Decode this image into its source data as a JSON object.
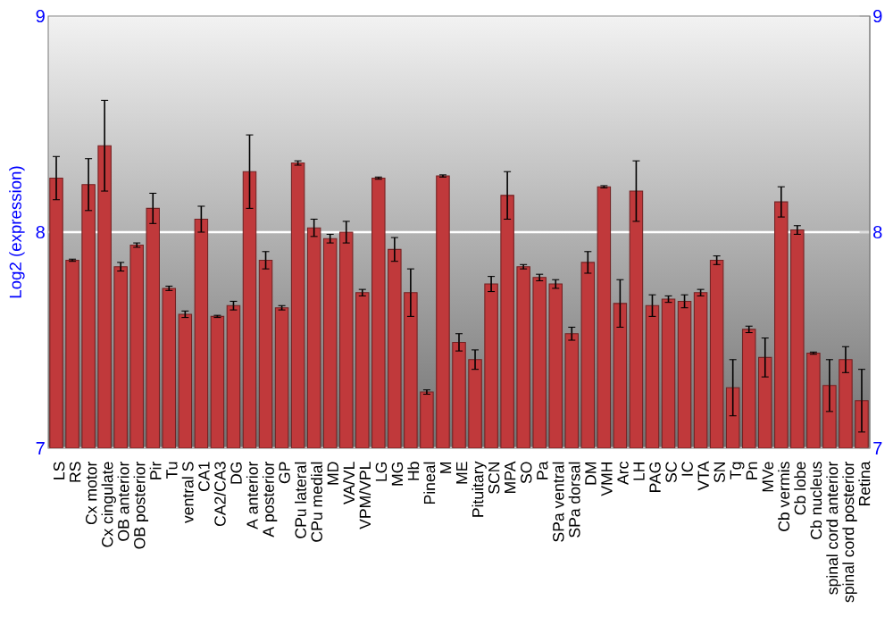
{
  "chart_data": {
    "type": "bar",
    "ylabel": "Log2 (expression)",
    "categories": [
      "LS",
      "RS",
      "Cx motor",
      "Cx cingulate",
      "OB anterior",
      "OB posterior",
      "Pir",
      "Tu",
      "ventral S",
      "CA1",
      "CA2/CA3",
      "DG",
      "A anterior",
      "A posterior",
      "GP",
      "CPu lateral",
      "CPu medial",
      "MD",
      "VA/VL",
      "VPM/VPL",
      "LG",
      "MG",
      "Hb",
      "Pineal",
      "M",
      "ME",
      "Pituitary",
      "SCN",
      "MPA",
      "SO",
      "Pa",
      "SPa ventral",
      "SPa dorsal",
      "DM",
      "VMH",
      "Arc",
      "LH",
      "PAG",
      "SC",
      "IC",
      "VTA",
      "SN",
      "Tg",
      "Pn",
      "MVe",
      "Cb vermis",
      "Cb lobe",
      "Cb nucleus",
      "spinal cord anterior",
      "spinal cord posterior",
      "Retina"
    ],
    "values": [
      8.25,
      7.87,
      8.22,
      8.4,
      7.84,
      7.94,
      8.11,
      7.74,
      7.62,
      8.06,
      7.61,
      7.66,
      8.28,
      7.87,
      7.65,
      8.32,
      8.02,
      7.97,
      8.0,
      7.72,
      8.25,
      7.92,
      7.72,
      7.26,
      8.26,
      7.49,
      7.41,
      7.76,
      8.17,
      7.84,
      7.79,
      7.76,
      7.53,
      7.86,
      8.21,
      7.67,
      8.19,
      7.66,
      7.69,
      7.68,
      7.72,
      7.87,
      7.28,
      7.55,
      7.42,
      8.14,
      8.01,
      7.44,
      7.29,
      7.41,
      7.22
    ],
    "errors": [
      0.1,
      0.005,
      0.12,
      0.21,
      0.02,
      0.01,
      0.07,
      0.01,
      0.015,
      0.06,
      0.005,
      0.02,
      0.17,
      0.04,
      0.01,
      0.01,
      0.04,
      0.02,
      0.05,
      0.015,
      0.005,
      0.055,
      0.11,
      0.01,
      0.005,
      0.04,
      0.045,
      0.035,
      0.11,
      0.01,
      0.015,
      0.02,
      0.03,
      0.05,
      0.005,
      0.11,
      0.14,
      0.05,
      0.015,
      0.03,
      0.015,
      0.02,
      0.13,
      0.015,
      0.09,
      0.07,
      0.02,
      0.005,
      0.12,
      0.06,
      0.145
    ],
    "color": "#c0393b",
    "ylim": [
      7,
      9
    ],
    "yticks": [
      7,
      8,
      9
    ],
    "y2lim": [
      7,
      9
    ],
    "y2ticks": [
      7,
      8,
      9
    ],
    "grid": "y"
  }
}
